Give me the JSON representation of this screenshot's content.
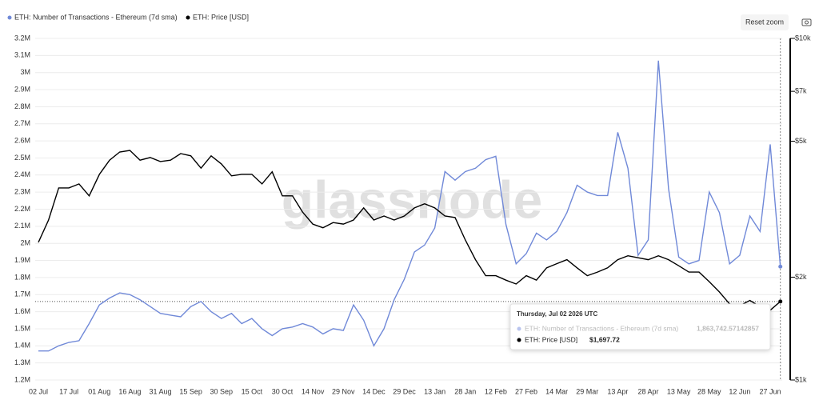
{
  "chart_data": {
    "type": "line",
    "legend": "top-left",
    "grid": true,
    "reset_button": "Reset zoom",
    "watermark": "glassnode",
    "x": [
      "02 Jul",
      null,
      null,
      "17 Jul",
      null,
      null,
      "01 Aug",
      null,
      null,
      "16 Aug",
      null,
      null,
      "31 Aug",
      null,
      null,
      "15 Sep",
      null,
      null,
      "30 Sep",
      null,
      null,
      "15 Oct",
      null,
      null,
      "30 Oct",
      null,
      null,
      "14 Nov",
      null,
      null,
      "29 Nov",
      null,
      null,
      "14 Dec",
      null,
      null,
      "29 Dec",
      null,
      null,
      "13 Jan",
      null,
      null,
      "28 Jan",
      null,
      null,
      "12 Feb",
      null,
      null,
      "27 Feb",
      null,
      null,
      "14 Mar",
      null,
      null,
      "29 Mar",
      null,
      null,
      "13 Apr",
      null,
      null,
      "28 Apr",
      null,
      null,
      "13 May",
      null,
      null,
      "28 May",
      null,
      null,
      "12 Jun",
      null,
      null,
      "27 Jun",
      null
    ],
    "series": [
      {
        "name": "ETH: Number of Transactions - Ethereum (7d sma)",
        "color": "#7089d8",
        "axis": "y",
        "values": [
          1370000,
          1370000,
          1400000,
          1420000,
          1430000,
          1530000,
          1640000,
          1680000,
          1710000,
          1700000,
          1670000,
          1630000,
          1590000,
          1580000,
          1570000,
          1630000,
          1660000,
          1600000,
          1560000,
          1590000,
          1530000,
          1560000,
          1500000,
          1460000,
          1500000,
          1510000,
          1530000,
          1510000,
          1470000,
          1500000,
          1490000,
          1640000,
          1550000,
          1400000,
          1500000,
          1670000,
          1790000,
          1950000,
          1990000,
          2090000,
          2420000,
          2370000,
          2420000,
          2440000,
          2490000,
          2510000,
          2110000,
          1880000,
          1940000,
          2060000,
          2020000,
          2070000,
          2180000,
          2340000,
          2300000,
          2280000,
          2280000,
          2650000,
          2440000,
          1930000,
          2020000,
          3070000,
          2320000,
          1920000,
          1880000,
          1900000,
          2300000,
          2180000,
          1880000,
          1930000,
          2160000,
          2070000,
          2580000,
          1863742.57142857
        ]
      },
      {
        "name": "ETH: Price [USD]",
        "color": "#000000",
        "axis": "y2",
        "values": [
          2530,
          2940,
          3650,
          3650,
          3750,
          3460,
          4000,
          4400,
          4650,
          4700,
          4400,
          4480,
          4360,
          4400,
          4600,
          4530,
          4170,
          4530,
          4290,
          3960,
          4000,
          4000,
          3750,
          4070,
          3460,
          3460,
          3100,
          2860,
          2790,
          2890,
          2860,
          2940,
          3190,
          2940,
          3020,
          2940,
          3020,
          3190,
          3280,
          3190,
          3020,
          2990,
          2570,
          2250,
          2020,
          2020,
          1960,
          1910,
          2020,
          1960,
          2130,
          2190,
          2250,
          2130,
          2020,
          2070,
          2130,
          2250,
          2310,
          2280,
          2250,
          2310,
          2250,
          2160,
          2070,
          2070,
          1940,
          1810,
          1670,
          1650,
          1710,
          1640,
          1600,
          1697.72
        ]
      }
    ],
    "ylim": [
      1200000,
      3200000
    ],
    "yticks": [
      {
        "value": 1200000,
        "label": "1.2M"
      },
      {
        "value": 1300000,
        "label": "1.3M"
      },
      {
        "value": 1400000,
        "label": "1.4M"
      },
      {
        "value": 1500000,
        "label": "1.5M"
      },
      {
        "value": 1600000,
        "label": "1.6M"
      },
      {
        "value": 1700000,
        "label": "1.7M"
      },
      {
        "value": 1800000,
        "label": "1.8M"
      },
      {
        "value": 1900000,
        "label": "1.9M"
      },
      {
        "value": 2000000,
        "label": "2M"
      },
      {
        "value": 2100000,
        "label": "2.1M"
      },
      {
        "value": 2200000,
        "label": "2.2M"
      },
      {
        "value": 2300000,
        "label": "2.3M"
      },
      {
        "value": 2400000,
        "label": "2.4M"
      },
      {
        "value": 2500000,
        "label": "2.5M"
      },
      {
        "value": 2600000,
        "label": "2.6M"
      },
      {
        "value": 2700000,
        "label": "2.7M"
      },
      {
        "value": 2800000,
        "label": "2.8M"
      },
      {
        "value": 2900000,
        "label": "2.9M"
      },
      {
        "value": 3000000,
        "label": "3M"
      },
      {
        "value": 3100000,
        "label": "3.1M"
      },
      {
        "value": 3200000,
        "label": "3.2M"
      }
    ],
    "y2lim": [
      1000,
      10000
    ],
    "y2scale": "log",
    "y2ticks": [
      {
        "value": 1000,
        "label": "$1k"
      },
      {
        "value": 2000,
        "label": "$2k"
      },
      {
        "value": 5000,
        "label": "$5k"
      },
      {
        "value": 7000,
        "label": "$7k"
      },
      {
        "value": 10000,
        "label": "$10k"
      }
    ],
    "tooltip": {
      "title": "Thursday, Jul 02 2026 UTC",
      "value_labels": [
        "1,863,742.57142857",
        "$1,697.72"
      ]
    }
  }
}
